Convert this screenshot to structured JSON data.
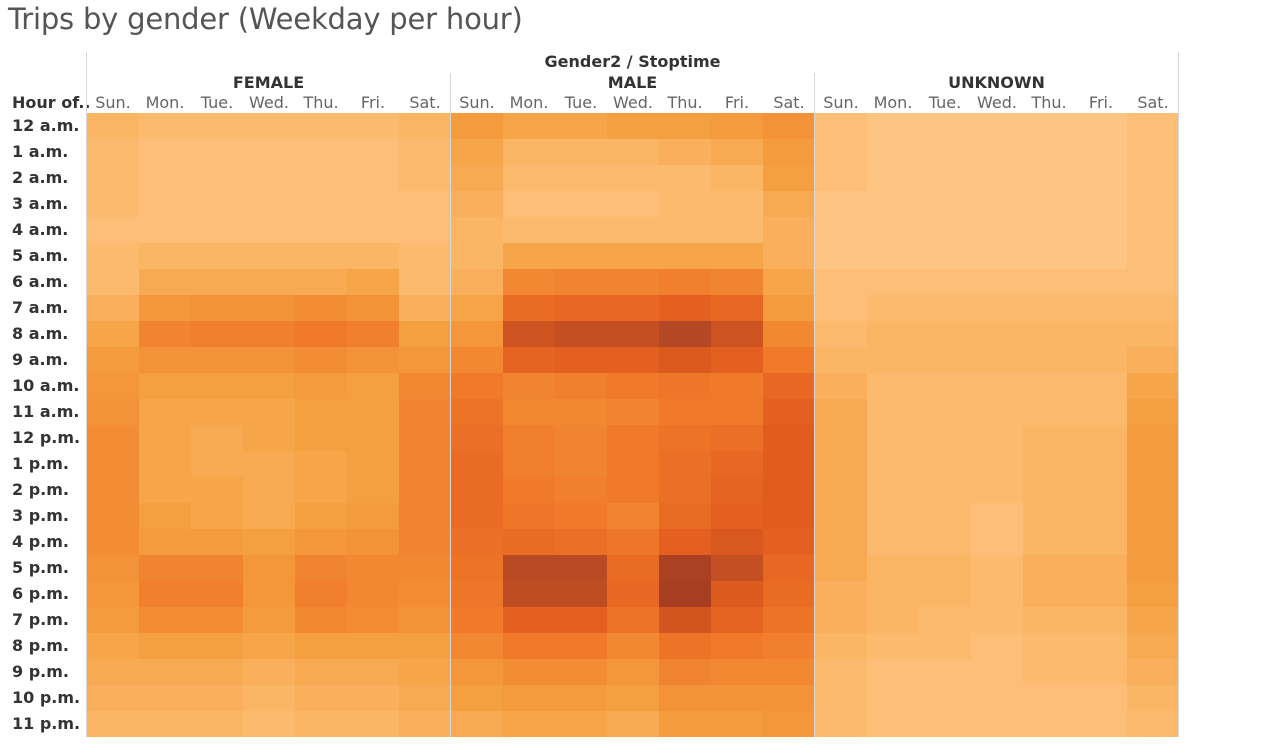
{
  "title": "Trips by gender (Weekday per hour)",
  "chart_data": {
    "type": "heatmap",
    "column_header": "Gender2 / Stoptime",
    "row_header": "Hour of..",
    "groups": [
      "FEMALE",
      "MALE",
      "UNKNOWN"
    ],
    "days": [
      "Sun.",
      "Mon.",
      "Tue.",
      "Wed.",
      "Thu.",
      "Fri.",
      "Sat."
    ],
    "hours": [
      "12 a.m.",
      "1 a.m.",
      "2 a.m.",
      "3 a.m.",
      "4 a.m.",
      "5 a.m.",
      "6 a.m.",
      "7 a.m.",
      "8 a.m.",
      "9 a.m.",
      "10 a.m.",
      "11 a.m.",
      "12 p.m.",
      "1 p.m.",
      "2 p.m.",
      "3 p.m.",
      "4 p.m.",
      "5 p.m.",
      "6 p.m.",
      "7 p.m.",
      "8 p.m.",
      "9 p.m.",
      "10 p.m.",
      "11 p.m."
    ],
    "color_scale": [
      "#ffc98a",
      "#f5a040",
      "#f07a2a",
      "#e25c1e",
      "#b84a24",
      "#a33a20"
    ],
    "intensity_scale": [
      0,
      40
    ],
    "values": {
      "FEMALE": [
        [
          4,
          3,
          3,
          3,
          3,
          3,
          4
        ],
        [
          3,
          2,
          2,
          2,
          2,
          2,
          3
        ],
        [
          3,
          2,
          2,
          2,
          2,
          2,
          3
        ],
        [
          3,
          2,
          2,
          2,
          2,
          2,
          2
        ],
        [
          2,
          2,
          2,
          2,
          2,
          2,
          2
        ],
        [
          3,
          4,
          4,
          4,
          4,
          4,
          3
        ],
        [
          3,
          6,
          6,
          6,
          6,
          7,
          3
        ],
        [
          5,
          10,
          11,
          11,
          12,
          11,
          5
        ],
        [
          7,
          14,
          15,
          15,
          16,
          15,
          8
        ],
        [
          9,
          11,
          11,
          11,
          12,
          11,
          10
        ],
        [
          10,
          8,
          8,
          8,
          9,
          8,
          13
        ],
        [
          11,
          7,
          7,
          7,
          8,
          8,
          14
        ],
        [
          12,
          7,
          6,
          7,
          8,
          8,
          14
        ],
        [
          12,
          7,
          6,
          6,
          7,
          8,
          14
        ],
        [
          12,
          7,
          7,
          6,
          7,
          8,
          14
        ],
        [
          12,
          8,
          7,
          6,
          8,
          9,
          14
        ],
        [
          12,
          9,
          9,
          8,
          10,
          11,
          14
        ],
        [
          11,
          14,
          14,
          10,
          14,
          13,
          13
        ],
        [
          10,
          15,
          15,
          10,
          15,
          13,
          12
        ],
        [
          9,
          12,
          12,
          9,
          13,
          12,
          11
        ],
        [
          7,
          8,
          8,
          7,
          8,
          8,
          8
        ],
        [
          6,
          6,
          6,
          5,
          6,
          6,
          7
        ],
        [
          5,
          5,
          5,
          4,
          5,
          5,
          6
        ],
        [
          4,
          4,
          4,
          3,
          4,
          4,
          5
        ]
      ],
      "MALE": [
        [
          9,
          7,
          7,
          8,
          8,
          9,
          11
        ],
        [
          7,
          4,
          4,
          4,
          5,
          6,
          9
        ],
        [
          6,
          3,
          3,
          3,
          3,
          4,
          8
        ],
        [
          5,
          2,
          2,
          2,
          3,
          3,
          6
        ],
        [
          4,
          3,
          3,
          3,
          3,
          3,
          5
        ],
        [
          4,
          7,
          7,
          7,
          7,
          7,
          5
        ],
        [
          5,
          13,
          14,
          14,
          15,
          14,
          7
        ],
        [
          7,
          20,
          21,
          21,
          23,
          21,
          9
        ],
        [
          10,
          28,
          30,
          30,
          33,
          28,
          13
        ],
        [
          13,
          22,
          23,
          23,
          25,
          23,
          16
        ],
        [
          16,
          14,
          15,
          16,
          17,
          16,
          21
        ],
        [
          18,
          13,
          13,
          14,
          16,
          16,
          23
        ],
        [
          19,
          15,
          14,
          16,
          18,
          19,
          24
        ],
        [
          20,
          15,
          14,
          16,
          19,
          21,
          24
        ],
        [
          20,
          16,
          15,
          16,
          19,
          22,
          24
        ],
        [
          20,
          17,
          16,
          14,
          20,
          23,
          24
        ],
        [
          19,
          20,
          19,
          17,
          23,
          26,
          23
        ],
        [
          18,
          32,
          32,
          20,
          37,
          30,
          21
        ],
        [
          17,
          31,
          31,
          21,
          38,
          25,
          20
        ],
        [
          16,
          23,
          23,
          18,
          27,
          22,
          18
        ],
        [
          13,
          16,
          16,
          13,
          18,
          16,
          15
        ],
        [
          10,
          12,
          12,
          10,
          14,
          13,
          13
        ],
        [
          8,
          9,
          9,
          8,
          11,
          11,
          11
        ],
        [
          6,
          7,
          7,
          6,
          9,
          9,
          10
        ]
      ],
      "UNKNOWN": [
        [
          2,
          1,
          1,
          1,
          1,
          1,
          2
        ],
        [
          2,
          1,
          1,
          1,
          1,
          1,
          2
        ],
        [
          2,
          1,
          1,
          1,
          1,
          1,
          2
        ],
        [
          1,
          1,
          1,
          1,
          1,
          1,
          2
        ],
        [
          1,
          1,
          1,
          1,
          1,
          1,
          2
        ],
        [
          1,
          1,
          1,
          1,
          1,
          1,
          2
        ],
        [
          2,
          2,
          2,
          2,
          2,
          2,
          2
        ],
        [
          2,
          3,
          3,
          3,
          3,
          3,
          3
        ],
        [
          3,
          4,
          4,
          4,
          4,
          4,
          4
        ],
        [
          4,
          4,
          4,
          4,
          4,
          4,
          5
        ],
        [
          5,
          3,
          3,
          3,
          3,
          3,
          7
        ],
        [
          6,
          3,
          3,
          3,
          3,
          3,
          8
        ],
        [
          6,
          3,
          3,
          3,
          4,
          4,
          9
        ],
        [
          6,
          3,
          3,
          3,
          4,
          4,
          9
        ],
        [
          6,
          3,
          3,
          3,
          4,
          4,
          9
        ],
        [
          6,
          3,
          3,
          2,
          4,
          4,
          9
        ],
        [
          6,
          3,
          3,
          2,
          4,
          4,
          9
        ],
        [
          6,
          4,
          4,
          3,
          5,
          5,
          9
        ],
        [
          5,
          4,
          4,
          3,
          5,
          5,
          8
        ],
        [
          5,
          4,
          3,
          3,
          4,
          4,
          7
        ],
        [
          4,
          3,
          3,
          2,
          3,
          3,
          6
        ],
        [
          3,
          2,
          2,
          2,
          3,
          3,
          5
        ],
        [
          3,
          2,
          2,
          2,
          2,
          2,
          4
        ],
        [
          3,
          2,
          2,
          2,
          2,
          2,
          3
        ]
      ]
    }
  }
}
